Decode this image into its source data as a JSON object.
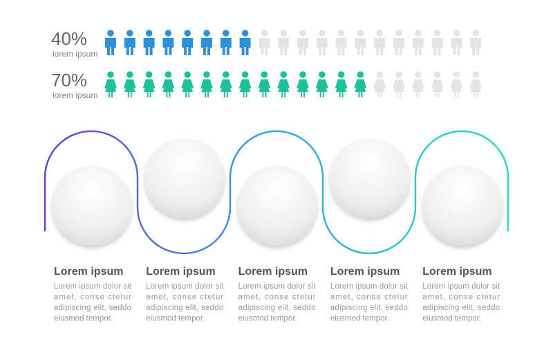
{
  "pictograph": {
    "rows": [
      {
        "value": 40,
        "value_label": "40%",
        "caption": "lorem ipsum",
        "color": "#2f8fd8",
        "icon": "male"
      },
      {
        "value": 70,
        "value_label": "70%",
        "caption": "lorem ipsum",
        "color": "#1dbf9c",
        "icon": "female"
      }
    ]
  },
  "steps": [
    {
      "title": "Lorem ipsum",
      "lines": [
        "Lorem ipsum dolor sit",
        "amet, conse ctetur",
        "adipiscing elit, seddo",
        "eiusmod tempor."
      ]
    },
    {
      "title": "Lorem ipsum",
      "lines": [
        "Lorem ipsum dolor sit",
        "amet, conse ctetur",
        "adipiscing elit, seddo",
        "eiusmod tempor."
      ]
    },
    {
      "title": "Lorem ipsum",
      "lines": [
        "Lorem ipsum dolor sit",
        "amet, conse ctetur",
        "adipiscing elit, seddo",
        "eiusmod tempor."
      ]
    },
    {
      "title": "Lorem ipsum",
      "lines": [
        "Lorem ipsum dolor sit",
        "amet, conse ctetur",
        "adipiscing elit, seddo",
        "eiusmod tempor."
      ]
    },
    {
      "title": "Lorem ipsum",
      "lines": [
        "Lorem ipsum dolor sit",
        "amet, conse ctetur",
        "adipiscing elit, seddo",
        "eiusmod tempor."
      ]
    }
  ]
}
